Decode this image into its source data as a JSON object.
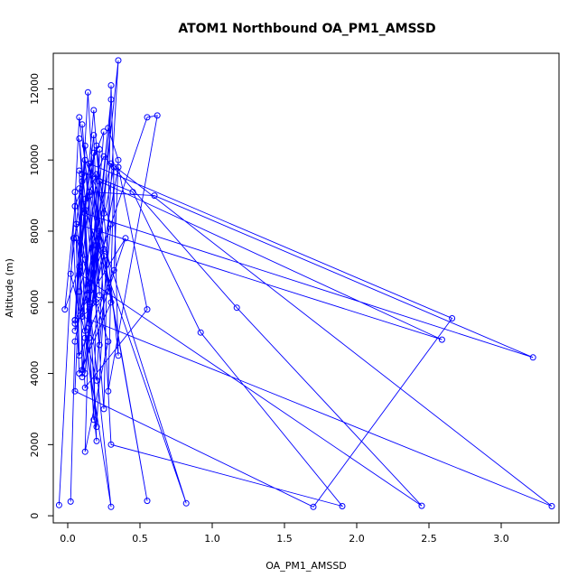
{
  "chart_data": {
    "type": "line",
    "title": "ATOM1 Northbound OA_PM1_AMSSD",
    "xlabel": "OA_PM1_AMSSD",
    "ylabel": "Altitude (m)",
    "xlim": [
      -0.1,
      3.4
    ],
    "ylim": [
      -200,
      13000
    ],
    "xticks": [
      0.0,
      0.5,
      1.0,
      1.5,
      2.0,
      2.5,
      3.0
    ],
    "xtick_labels": [
      "0.0",
      "0.5",
      "1.0",
      "1.5",
      "2.0",
      "2.5",
      "3.0"
    ],
    "yticks": [
      0,
      2000,
      4000,
      6000,
      8000,
      10000,
      12000
    ],
    "ytick_labels": [
      "0",
      "2000",
      "4000",
      "6000",
      "8000",
      "10000",
      "12000"
    ],
    "grid": false,
    "legend": "none",
    "series": [
      {
        "color": "#0000ff",
        "marker": "open-circle",
        "x": [
          -0.06,
          0.08,
          0.15,
          0.2,
          0.1,
          0.25,
          0.3,
          0.35,
          0.2,
          0.12,
          0.05,
          0.14,
          0.22,
          0.18,
          0.08,
          -0.02,
          0.05,
          0.25,
          0.12,
          0.35,
          0.2,
          0.1,
          0.05,
          0.55,
          0.62,
          0.28,
          0.32,
          0.15,
          0.08,
          0.22,
          0.3,
          0.12,
          0.05,
          0.18,
          0.25,
          0.2,
          0.02,
          0.1,
          0.15,
          0.28,
          0.35,
          0.32,
          0.08,
          0.05,
          0.12,
          0.18,
          0.22,
          0.15,
          0.3,
          0.25,
          0.1,
          0.08,
          0.2,
          0.15,
          0.3,
          0.12,
          0.22,
          0.82,
          0.12,
          0.2,
          0.06,
          0.28,
          0.12,
          0.18,
          0.08,
          0.05,
          1.7,
          2.66,
          0.15,
          0.3,
          0.08,
          0.04,
          0.15,
          0.25,
          1.17,
          2.45,
          0.08,
          0.12,
          0.55,
          0.25,
          0.12,
          0.08,
          0.45,
          0.92,
          1.9,
          0.3,
          0.2,
          0.1,
          0.28,
          0.15,
          0.6,
          3.22,
          0.12,
          0.05,
          0.4,
          0.1,
          0.22,
          2.59,
          0.06,
          0.15,
          0.35,
          0.55,
          0.12,
          0.08,
          0.3,
          3.35,
          0.1,
          0.18,
          0.05,
          0.02
        ],
        "y": [
          300,
          11200,
          9000,
          6000,
          11000,
          3000,
          12100,
          4500,
          10400,
          8900,
          5500,
          11900,
          6200,
          10700,
          7000,
          5800,
          8700,
          10800,
          4000,
          12800,
          2500,
          9400,
          5200,
          11200,
          11250,
          3500,
          9800,
          6400,
          10600,
          4800,
          8200,
          10000,
          5400,
          11400,
          7500,
          3800,
          6800,
          9600,
          5000,
          10900,
          10000,
          6900,
          4500,
          9100,
          7200,
          2700,
          10300,
          5800,
          11700,
          8500,
          3900,
          9200,
          7600,
          6000,
          250,
          5000,
          8000,
          350,
          8600,
          2100,
          7800,
          4900,
          1800,
          10200,
          6300,
          3500,
          250,
          5550,
          9900,
          6000,
          4000,
          7800,
          9100,
          10100,
          5850,
          280,
          6800,
          10400,
          420,
          7300,
          5200,
          9700,
          9100,
          5150,
          270,
          2000,
          9600,
          5600,
          6300,
          9100,
          9000,
          4450,
          8500,
          5500,
          7800,
          4100,
          9400,
          4950,
          8200,
          5400,
          9800,
          5800,
          3600,
          6300,
          9900,
          270,
          5600,
          7600,
          4900,
          400
        ]
      }
    ]
  }
}
